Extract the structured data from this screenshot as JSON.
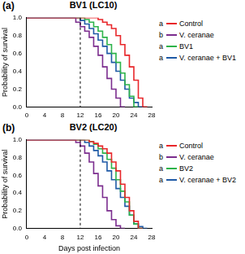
{
  "chart_data": [
    {
      "type": "line",
      "panel": "(a)",
      "title": "BV1 (LC10)",
      "y_label": "Probability of survival",
      "x": [
        0,
        1,
        2,
        3,
        4,
        5,
        6,
        7,
        8,
        9,
        10,
        11,
        12,
        13,
        14,
        15,
        16,
        17,
        18,
        19,
        20,
        21,
        22,
        23,
        24,
        25,
        26,
        27,
        28
      ],
      "xlim": [
        0,
        28
      ],
      "xticks": [
        0,
        4,
        8,
        12,
        16,
        20,
        24,
        28
      ],
      "ylim": [
        0,
        1
      ],
      "yticks": [
        {
          "value": 0,
          "label": "0.0"
        },
        {
          "value": 0.2,
          "label": "0.2"
        },
        {
          "value": 0.4,
          "label": "0.4"
        },
        {
          "value": 0.6,
          "label": "0.6"
        },
        {
          "value": 0.8,
          "label": "0.8"
        },
        {
          "value": 1,
          "label": "1.0"
        }
      ],
      "grid": false,
      "line_style": "step",
      "vline": 12,
      "series": [
        {
          "name": "Control",
          "letter": "a",
          "color": "#e8262a",
          "values": [
            1,
            1,
            1,
            1,
            1,
            1,
            1,
            1,
            1,
            1,
            1,
            1,
            1,
            1,
            1,
            1,
            1,
            0.98,
            0.95,
            0.92,
            0.88,
            0.8,
            0.7,
            0.58,
            0.45,
            0.3,
            0.1,
            0,
            null
          ]
        },
        {
          "name": "V. ceranae",
          "letter": "b",
          "color": "#7b2d8e",
          "values": [
            1,
            1,
            1,
            1,
            1,
            1,
            1,
            1,
            1,
            1,
            1,
            1,
            0.95,
            0.9,
            0.85,
            0.78,
            0.68,
            0.58,
            0.45,
            0.32,
            0.2,
            0.1,
            0,
            null,
            null,
            null,
            null,
            null,
            null
          ]
        },
        {
          "name": "BV1",
          "letter": "a",
          "color": "#2db34a",
          "values": [
            1,
            1,
            1,
            1,
            1,
            1,
            1,
            1,
            1,
            1,
            1,
            1,
            1,
            1,
            0.98,
            0.95,
            0.9,
            0.85,
            0.78,
            0.7,
            0.6,
            0.5,
            0.38,
            0.25,
            0.12,
            0,
            null,
            null,
            null
          ]
        },
        {
          "name": "V. ceranae + BV1",
          "letter": "a",
          "color": "#1f5aa6",
          "values": [
            1,
            1,
            1,
            1,
            1,
            1,
            1,
            1,
            1,
            1,
            1,
            1,
            1,
            0.97,
            0.93,
            0.88,
            0.82,
            0.75,
            0.68,
            0.6,
            0.5,
            0.4,
            0.3,
            0.2,
            0.1,
            0.05,
            0,
            null,
            null
          ]
        }
      ]
    },
    {
      "type": "line",
      "panel": "(b)",
      "title": "BV2 (LC20)",
      "y_label": "Probability of survival",
      "x_label": "Days post infection",
      "x": [
        0,
        1,
        2,
        3,
        4,
        5,
        6,
        7,
        8,
        9,
        10,
        11,
        12,
        13,
        14,
        15,
        16,
        17,
        18,
        19,
        20,
        21,
        22,
        23,
        24,
        25,
        26,
        27,
        28
      ],
      "xlim": [
        0,
        28
      ],
      "xticks": [
        0,
        4,
        8,
        12,
        16,
        20,
        24,
        28
      ],
      "ylim": [
        0,
        1
      ],
      "yticks": [
        {
          "value": 0,
          "label": "0.0"
        },
        {
          "value": 0.2,
          "label": "0.2"
        },
        {
          "value": 0.4,
          "label": "0.4"
        },
        {
          "value": 0.6,
          "label": "0.6"
        },
        {
          "value": 0.8,
          "label": "0.8"
        },
        {
          "value": 1,
          "label": "1.0"
        }
      ],
      "grid": false,
      "line_style": "step",
      "vline": 12,
      "series": [
        {
          "name": "Control",
          "letter": "a",
          "color": "#e8262a",
          "values": [
            1,
            1,
            1,
            1,
            1,
            1,
            1,
            1,
            1,
            1,
            1,
            1,
            1,
            1,
            1,
            0.98,
            0.96,
            0.93,
            0.9,
            0.85,
            0.75,
            0.65,
            0.5,
            0.35,
            0.2,
            0.08,
            0,
            null,
            null
          ]
        },
        {
          "name": "V. ceranae",
          "letter": "b",
          "color": "#7b2d8e",
          "values": [
            1,
            1,
            1,
            1,
            1,
            1,
            1,
            1,
            1,
            1,
            1,
            1,
            0.97,
            0.93,
            0.85,
            0.75,
            0.62,
            0.48,
            0.35,
            0.2,
            0.1,
            0.03,
            0,
            null,
            null,
            null,
            null,
            null,
            null
          ]
        },
        {
          "name": "BV2",
          "letter": "a",
          "color": "#2db34a",
          "values": [
            1,
            1,
            1,
            1,
            1,
            1,
            1,
            1,
            1,
            1,
            1,
            1,
            1,
            1,
            1,
            0.98,
            0.95,
            0.9,
            0.85,
            0.78,
            0.68,
            0.55,
            0.42,
            0.3,
            0.15,
            0.05,
            0,
            null,
            null
          ]
        },
        {
          "name": "V. ceranae + BV2",
          "letter": "a",
          "color": "#1f5aa6",
          "values": [
            1,
            1,
            1,
            1,
            1,
            1,
            1,
            1,
            1,
            1,
            1,
            1,
            1,
            1,
            0.97,
            0.93,
            0.88,
            0.82,
            0.75,
            0.65,
            0.55,
            0.45,
            0.35,
            0.25,
            0.15,
            0.05,
            0.02,
            0,
            null
          ]
        }
      ]
    }
  ]
}
